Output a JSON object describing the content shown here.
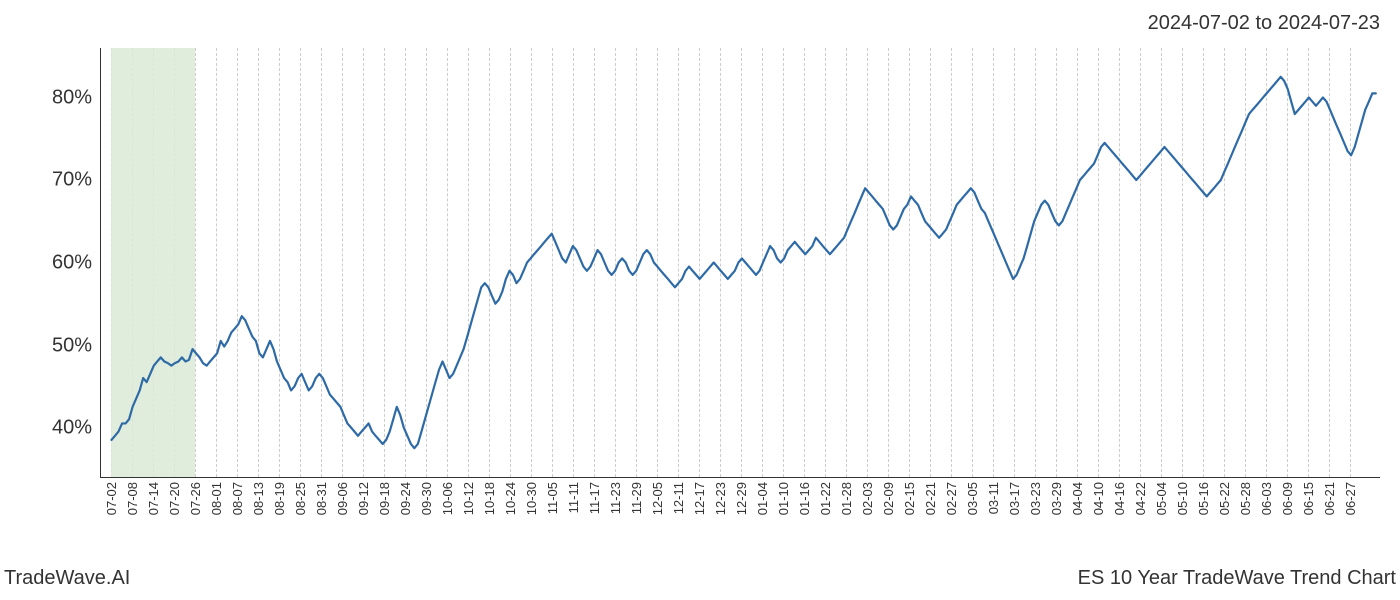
{
  "header": {
    "date_range": "2024-07-02 to 2024-07-23"
  },
  "footer": {
    "left": "TradeWave.AI",
    "right": "ES 10 Year TradeWave Trend Chart"
  },
  "chart": {
    "type": "line",
    "line_color": "#2e6aa6",
    "line_width": 2.2,
    "background_color": "#ffffff",
    "highlight_band": {
      "start_index": 0,
      "end_index": 4,
      "color": "#dcead6"
    },
    "grid_color": "#cccccc",
    "grid_dash": true,
    "axis_color": "#333333",
    "ylim": [
      34,
      86
    ],
    "y_ticks": [
      40,
      50,
      60,
      70,
      80
    ],
    "y_tick_labels": [
      "40%",
      "50%",
      "60%",
      "70%",
      "80%"
    ],
    "x_tick_step": 1,
    "x_labels": [
      "07-02",
      "07-08",
      "07-14",
      "07-20",
      "07-26",
      "08-01",
      "08-07",
      "08-13",
      "08-19",
      "08-25",
      "08-31",
      "09-06",
      "09-12",
      "09-18",
      "09-24",
      "09-30",
      "10-06",
      "10-12",
      "10-18",
      "10-24",
      "10-30",
      "11-05",
      "11-11",
      "11-17",
      "11-23",
      "11-29",
      "12-05",
      "12-11",
      "12-17",
      "12-23",
      "12-29",
      "01-04",
      "01-10",
      "01-16",
      "01-22",
      "01-28",
      "02-03",
      "02-09",
      "02-15",
      "02-21",
      "02-27",
      "03-05",
      "03-11",
      "03-17",
      "03-23",
      "03-29",
      "04-04",
      "04-10",
      "04-16",
      "04-22",
      "05-04",
      "05-10",
      "05-16",
      "05-22",
      "05-28",
      "06-03",
      "06-09",
      "06-15",
      "06-21",
      "06-27"
    ],
    "values": [
      38.5,
      39,
      39.5,
      40.5,
      40.5,
      41,
      42.5,
      43.5,
      44.5,
      46,
      45.5,
      46.5,
      47.5,
      48,
      48.5,
      48,
      47.8,
      47.5,
      47.8,
      48,
      48.5,
      48,
      48.2,
      49.5,
      49,
      48.5,
      47.8,
      47.5,
      48,
      48.5,
      49,
      50.5,
      49.8,
      50.5,
      51.5,
      52,
      52.5,
      53.5,
      53,
      52,
      51,
      50.5,
      49,
      48.5,
      49.5,
      50.5,
      49.5,
      48,
      47,
      46,
      45.5,
      44.5,
      45,
      46,
      46.5,
      45.5,
      44.5,
      45,
      46,
      46.5,
      46,
      45,
      44,
      43.5,
      43,
      42.5,
      41.5,
      40.5,
      40,
      39.5,
      39,
      39.5,
      40,
      40.5,
      39.5,
      39,
      38.5,
      38,
      38.5,
      39.5,
      41,
      42.5,
      41.5,
      40,
      39,
      38,
      37.5,
      38,
      39.5,
      41,
      42.5,
      44,
      45.5,
      47,
      48,
      47,
      46,
      46.5,
      47.5,
      48.5,
      49.5,
      51,
      52.5,
      54,
      55.5,
      57,
      57.5,
      57,
      56,
      55,
      55.5,
      56.5,
      58,
      59,
      58.5,
      57.5,
      58,
      59,
      60,
      60.5,
      61,
      61.5,
      62,
      62.5,
      63,
      63.5,
      62.5,
      61.5,
      60.5,
      60,
      61,
      62,
      61.5,
      60.5,
      59.5,
      59,
      59.5,
      60.5,
      61.5,
      61,
      60,
      59,
      58.5,
      59,
      60,
      60.5,
      60,
      59,
      58.5,
      59,
      60,
      61,
      61.5,
      61,
      60,
      59.5,
      59,
      58.5,
      58,
      57.5,
      57,
      57.5,
      58,
      59,
      59.5,
      59,
      58.5,
      58,
      58.5,
      59,
      59.5,
      60,
      59.5,
      59,
      58.5,
      58,
      58.5,
      59,
      60,
      60.5,
      60,
      59.5,
      59,
      58.5,
      59,
      60,
      61,
      62,
      61.5,
      60.5,
      60,
      60.5,
      61.5,
      62,
      62.5,
      62,
      61.5,
      61,
      61.5,
      62,
      63,
      62.5,
      62,
      61.5,
      61,
      61.5,
      62,
      62.5,
      63,
      64,
      65,
      66,
      67,
      68,
      69,
      68.5,
      68,
      67.5,
      67,
      66.5,
      65.5,
      64.5,
      64,
      64.5,
      65.5,
      66.5,
      67,
      68,
      67.5,
      67,
      66,
      65,
      64.5,
      64,
      63.5,
      63,
      63.5,
      64,
      65,
      66,
      67,
      67.5,
      68,
      68.5,
      69,
      68.5,
      67.5,
      66.5,
      66,
      65,
      64,
      63,
      62,
      61,
      60,
      59,
      58,
      58.5,
      59.5,
      60.5,
      62,
      63.5,
      65,
      66,
      67,
      67.5,
      67,
      66,
      65,
      64.5,
      65,
      66,
      67,
      68,
      69,
      70,
      70.5,
      71,
      71.5,
      72,
      73,
      74,
      74.5,
      74,
      73.5,
      73,
      72.5,
      72,
      71.5,
      71,
      70.5,
      70,
      70.5,
      71,
      71.5,
      72,
      72.5,
      73,
      73.5,
      74,
      73.5,
      73,
      72.5,
      72,
      71.5,
      71,
      70.5,
      70,
      69.5,
      69,
      68.5,
      68,
      68.5,
      69,
      69.5,
      70,
      71,
      72,
      73,
      74,
      75,
      76,
      77,
      78,
      78.5,
      79,
      79.5,
      80,
      80.5,
      81,
      81.5,
      82,
      82.5,
      82,
      81,
      79.5,
      78,
      78.5,
      79,
      79.5,
      80,
      79.5,
      79,
      79.5,
      80,
      79.5,
      78.5,
      77.5,
      76.5,
      75.5,
      74.5,
      73.5,
      73,
      74,
      75.5,
      77,
      78.5,
      79.5,
      80.5,
      80.5
    ],
    "label_fontsize": 13,
    "ylabel_fontsize": 20,
    "header_fontsize": 20,
    "footer_fontsize": 20
  }
}
